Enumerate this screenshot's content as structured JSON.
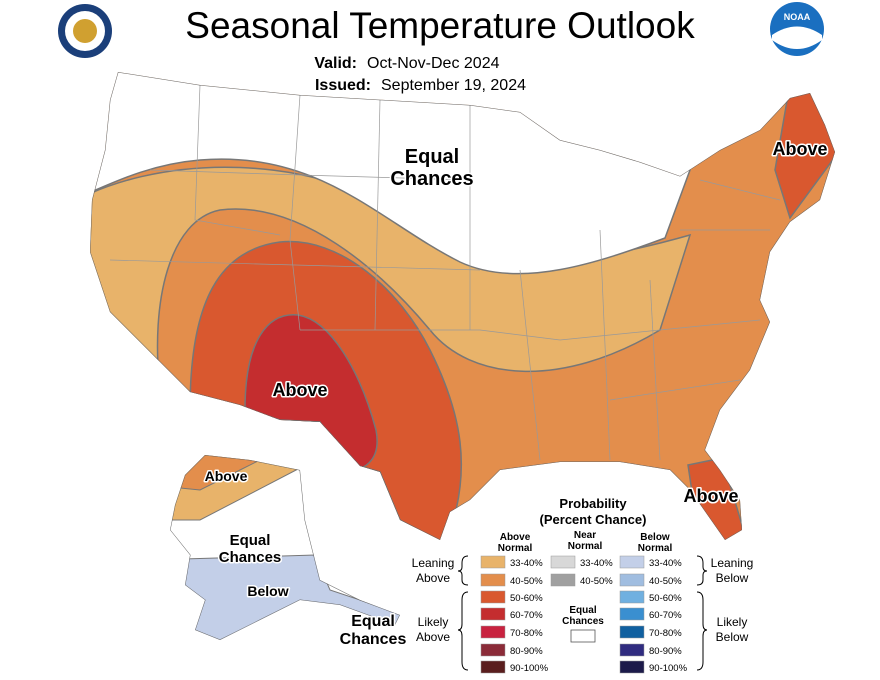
{
  "header": {
    "title": "Seasonal Temperature Outlook",
    "valid_label": "Valid:",
    "valid": "Oct-Nov-Dec 2024",
    "issued_label": "Issued:",
    "issued": "September 19, 2024",
    "logo": "NOAA"
  },
  "map_labels": [
    {
      "lines": [
        "Equal",
        "Chances"
      ]
    },
    {
      "lines": [
        "Above"
      ]
    },
    {
      "lines": [
        "Above"
      ]
    },
    {
      "lines": [
        "Above"
      ]
    },
    {
      "lines": [
        "Above"
      ]
    },
    {
      "lines": [
        "Equal",
        "Chances"
      ]
    },
    {
      "lines": [
        "Below"
      ]
    },
    {
      "lines": [
        "Equal",
        "Chances"
      ]
    }
  ],
  "legend": {
    "title": [
      "Probability",
      "(Percent Chance)"
    ],
    "columns": [
      {
        "header": [
          "Above",
          "Normal"
        ],
        "items": [
          {
            "label": "33-40%",
            "color": "#e8b36a"
          },
          {
            "label": "40-50%",
            "color": "#e38e4c"
          },
          {
            "label": "50-60%",
            "color": "#d9582f"
          },
          {
            "label": "60-70%",
            "color": "#c42d2f"
          },
          {
            "label": "70-80%",
            "color": "#c8223f"
          },
          {
            "label": "80-90%",
            "color": "#8b2b38"
          },
          {
            "label": "90-100%",
            "color": "#5a1e1e"
          }
        ]
      },
      {
        "header": [
          "Near",
          "Normal"
        ],
        "items": [
          {
            "label": "33-40%",
            "color": "#d8d8d8"
          },
          {
            "label": "40-50%",
            "color": "#a0a0a0"
          }
        ]
      },
      {
        "header": [
          "Below",
          "Normal"
        ],
        "items": [
          {
            "label": "33-40%",
            "color": "#c3cfe8"
          },
          {
            "label": "40-50%",
            "color": "#a0bde0"
          },
          {
            "label": "50-60%",
            "color": "#70b0e0"
          },
          {
            "label": "60-70%",
            "color": "#3a8fd0"
          },
          {
            "label": "70-80%",
            "color": "#1060a0"
          },
          {
            "label": "80-90%",
            "color": "#302c80"
          },
          {
            "label": "90-100%",
            "color": "#1c1a4a"
          }
        ]
      }
    ],
    "equal_chances": {
      "lines": [
        "Equal",
        "Chances"
      ]
    },
    "groups": [
      {
        "lines": [
          "Leaning",
          "Above"
        ]
      },
      {
        "lines": [
          "Likely",
          "Above"
        ]
      },
      {
        "lines": [
          "Leaning",
          "Below"
        ]
      },
      {
        "lines": [
          "Likely",
          "Below"
        ]
      }
    ]
  }
}
